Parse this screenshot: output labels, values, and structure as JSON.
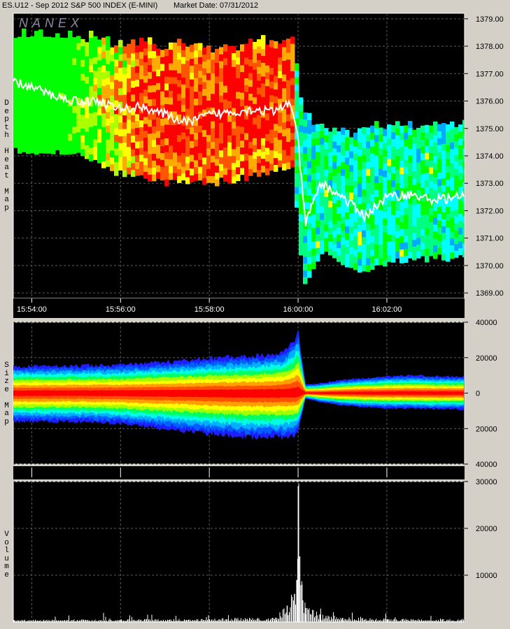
{
  "header": {
    "symbol_title": "ES.U12 - Sep 2012 S&P 500 INDEX (E-MINI)",
    "market_date": "Market Date: 07/31/2012"
  },
  "watermark": "NANEX",
  "colors": {
    "background": "#000000",
    "frame": "#d4d0c8",
    "grid": "#5a5a5a",
    "heat_scale_low_to_high": [
      "#0033ff",
      "#00aaff",
      "#00ffff",
      "#00ff80",
      "#00ff00",
      "#aaff00",
      "#ffff00",
      "#ffaa00",
      "#ff5500",
      "#ff0000"
    ],
    "price_trace": "#ffffff",
    "volume": "#ffffff"
  },
  "chart_data": [
    {
      "type": "heatmap",
      "name_label": "Depth Heat Map",
      "x": {
        "labels": [
          "15:54:00",
          "15:56:00",
          "15:58:00",
          "16:00:00",
          "16:02:00"
        ],
        "range": [
          "15:53:35",
          "16:03:45"
        ]
      },
      "y": {
        "labels": [
          "1379.00",
          "1378.00",
          "1377.00",
          "1376.00",
          "1375.00",
          "1374.00",
          "1373.00",
          "1372.00",
          "1371.00",
          "1370.00",
          "1369.00"
        ],
        "range": [
          1368.8,
          1379.2
        ]
      },
      "grid": true,
      "price_trace": {
        "time": [
          "15:53:35",
          "15:54:00",
          "15:54:30",
          "15:55:00",
          "15:55:30",
          "15:56:00",
          "15:56:30",
          "15:57:00",
          "15:57:30",
          "15:58:00",
          "15:58:30",
          "15:59:00",
          "15:59:30",
          "15:59:50",
          "16:00:00",
          "16:00:10",
          "16:00:30",
          "16:01:00",
          "16:01:30",
          "16:02:00",
          "16:02:30",
          "16:03:00",
          "16:03:40"
        ],
        "price": [
          1376.7,
          1376.5,
          1376.2,
          1376.0,
          1376.0,
          1375.7,
          1375.8,
          1375.5,
          1375.2,
          1375.5,
          1375.6,
          1375.7,
          1375.6,
          1376.0,
          1374.5,
          1371.5,
          1373.0,
          1372.5,
          1371.8,
          1372.5,
          1372.6,
          1372.4,
          1372.5
        ]
      },
      "liquidity_band": {
        "time": [
          "15:53:35",
          "15:55:00",
          "15:56:00",
          "15:57:00",
          "15:58:00",
          "15:59:00",
          "15:59:50",
          "16:00:05",
          "16:00:30",
          "16:01:00",
          "16:01:30",
          "16:02:00",
          "16:02:30",
          "16:03:00",
          "16:03:40"
        ],
        "top": [
          1378.3,
          1378.3,
          1378.0,
          1378.0,
          1377.8,
          1378.0,
          1378.2,
          1375.5,
          1375.0,
          1374.7,
          1374.8,
          1375.0,
          1375.0,
          1375.1,
          1375.0
        ],
        "bottom": [
          1374.2,
          1374.1,
          1373.3,
          1373.0,
          1373.0,
          1373.3,
          1373.6,
          1369.1,
          1370.5,
          1370.0,
          1369.7,
          1370.2,
          1370.2,
          1370.3,
          1370.3
        ]
      },
      "intensity_note": "red = deepest liquidity before 16:00, cyan/green after"
    },
    {
      "type": "area",
      "name_label": "Size Map",
      "y": {
        "labels": [
          "40000",
          "20000",
          "0",
          "20000",
          "40000"
        ],
        "range": [
          -40000,
          40000
        ]
      },
      "grid": true,
      "x": [
        "15:53:35",
        "15:55:00",
        "15:56:00",
        "15:57:00",
        "15:58:00",
        "15:59:00",
        "15:59:40",
        "15:59:55",
        "16:00:00",
        "16:00:10",
        "16:00:30",
        "16:01:00",
        "16:01:30",
        "16:02:00",
        "16:02:30",
        "16:03:00",
        "16:03:40"
      ],
      "upper": [
        15000,
        15500,
        16000,
        17500,
        19500,
        21000,
        23000,
        30000,
        36000,
        5000,
        5500,
        7500,
        8500,
        9500,
        10000,
        9500,
        9500
      ],
      "lower": [
        -16000,
        -16000,
        -17000,
        -20000,
        -23000,
        -25000,
        -25000,
        -24000,
        -22000,
        -3000,
        -5000,
        -7000,
        -8000,
        -8500,
        -8500,
        -9000,
        -9000
      ]
    },
    {
      "type": "bar",
      "name_label": "Volume",
      "y": {
        "labels": [
          "30000",
          "20000",
          "10000"
        ],
        "range": [
          0,
          30000
        ]
      },
      "grid": true,
      "x": [
        "15:53:35",
        "15:56:00",
        "15:58:00",
        "15:59:30",
        "15:59:45",
        "15:59:55",
        "15:59:58",
        "16:00:00",
        "16:00:02",
        "16:00:05",
        "16:00:10",
        "16:00:30",
        "16:01:00",
        "16:02:00",
        "16:03:40"
      ],
      "values": [
        400,
        500,
        600,
        900,
        3500,
        6000,
        9000,
        29000,
        14000,
        8000,
        3000,
        1500,
        900,
        600,
        500
      ],
      "baseline_noise": 350
    }
  ]
}
